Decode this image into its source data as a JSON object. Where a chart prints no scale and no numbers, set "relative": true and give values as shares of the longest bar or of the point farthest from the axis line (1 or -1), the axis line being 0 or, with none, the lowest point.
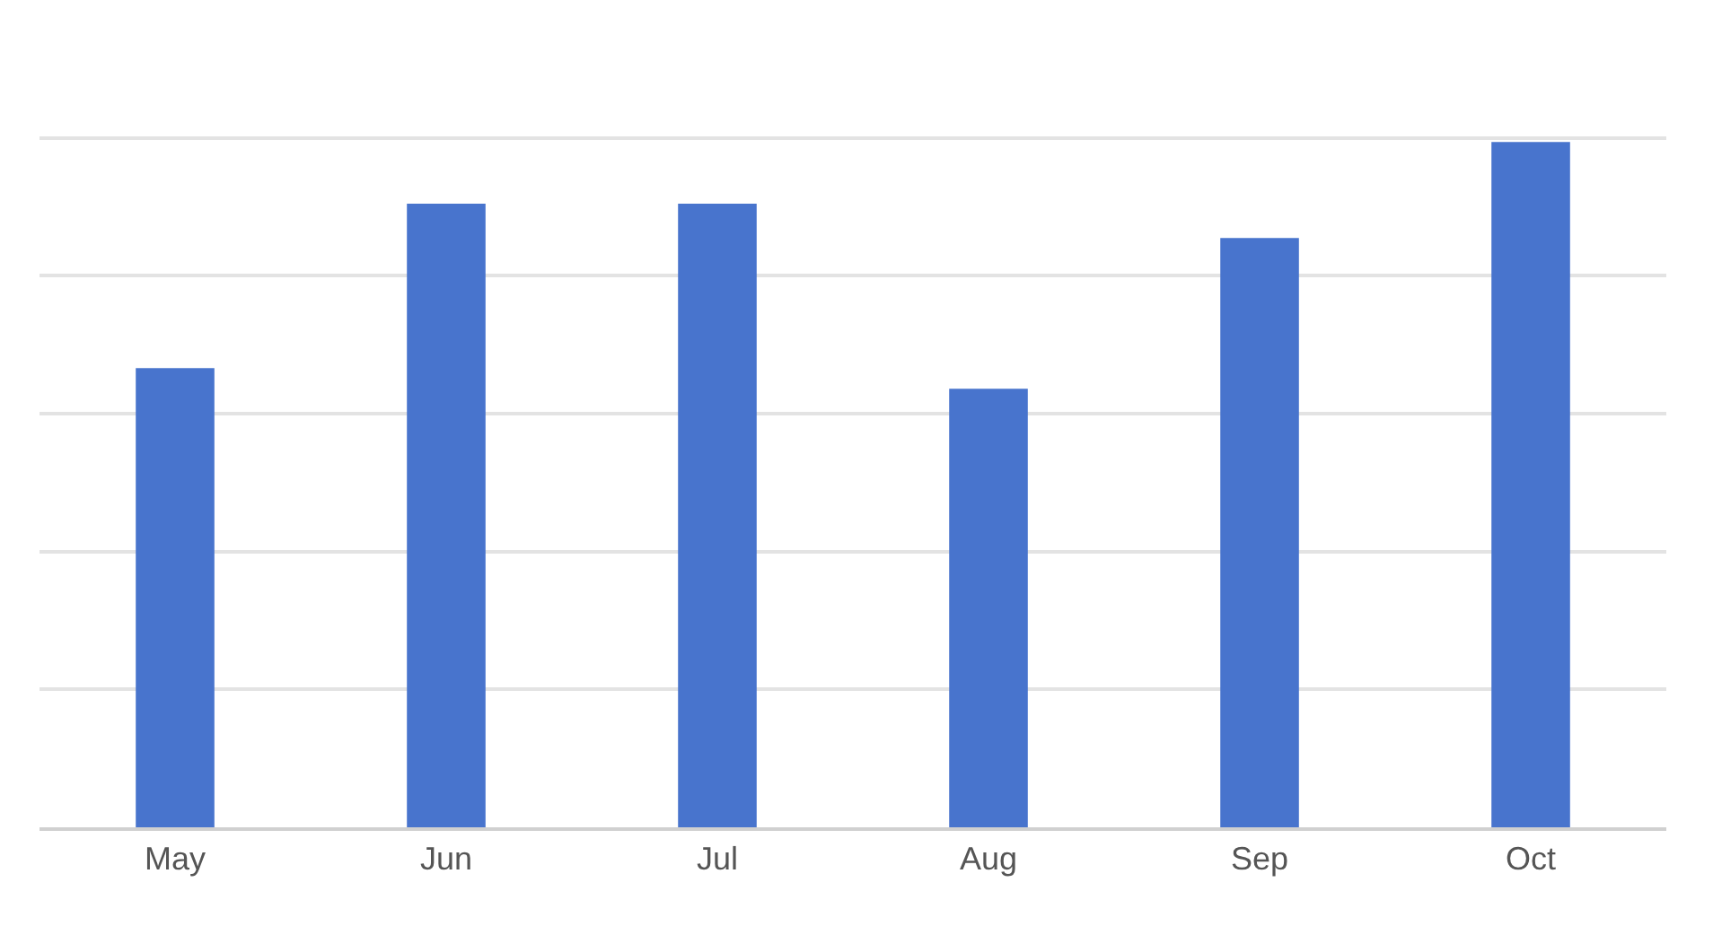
{
  "chart_data": {
    "type": "bar",
    "relative": true,
    "categories": [
      "May",
      "Jun",
      "Jul",
      "Aug",
      "Sep",
      "Oct"
    ],
    "values": [
      0.67,
      0.91,
      0.91,
      0.64,
      0.86,
      1
    ],
    "color": "#4874cd",
    "grid": true,
    "legend": false
  }
}
